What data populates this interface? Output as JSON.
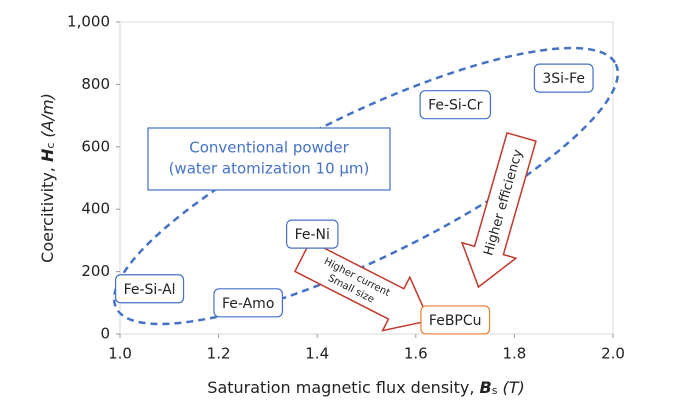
{
  "chart_data": {
    "type": "scatter",
    "xlabel": {
      "prefix": "Saturation magnetic flux density, ",
      "symbol": "B",
      "subscript": "s",
      "unit": "(T)"
    },
    "ylabel": {
      "prefix": "Coercitivity, ",
      "symbol": "H",
      "subscript": "c",
      "unit": "(A/m)"
    },
    "labels": [
      "Fe-Si-Al",
      "Fe-Amo",
      "Fe-Ni",
      "Fe-Si-Cr",
      "3Si-Fe",
      "FeBPCu"
    ],
    "x": [
      1.06,
      1.26,
      1.39,
      1.68,
      1.9,
      1.68
    ],
    "values": [
      145,
      100,
      320,
      735,
      820,
      45
    ],
    "colors": [
      "#4472c4",
      "#4472c4",
      "#4472c4",
      "#4472c4",
      "#4472c4",
      "#ed7d31"
    ],
    "xlim": [
      1.0,
      2.0
    ],
    "xticks": [
      {
        "value": 1.0,
        "label": "1.0"
      },
      1.2,
      1.4,
      1.6,
      1.8,
      {
        "value": 2.0,
        "label": "2.0"
      }
    ],
    "ylim": [
      0,
      1000
    ],
    "yticks": [
      0,
      200,
      400,
      600,
      800,
      {
        "value": 1000,
        "label": "1,000"
      }
    ],
    "annotations": {
      "conventional": [
        "Conventional powder",
        "(water atomization 10 µm)"
      ],
      "current_arrow": [
        "Higher current",
        "Small size"
      ],
      "efficiency_arrow": "Higher efficiency"
    }
  }
}
